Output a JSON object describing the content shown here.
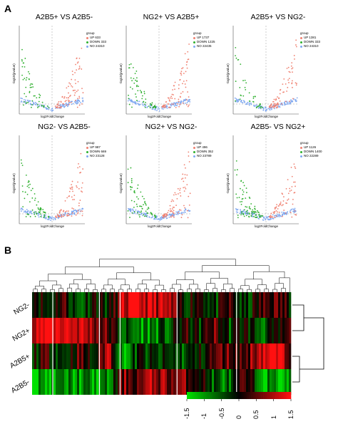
{
  "panels": {
    "a": "A",
    "b": "B"
  },
  "volcano": {
    "legend_title": "group",
    "xlabel": "log2FoldChange",
    "ylabel": "-log10(pvalue)",
    "colors": {
      "up": "#f08070",
      "down": "#2fb02f",
      "no": "#7fa8f0"
    },
    "plots": [
      {
        "title": "A2B5+ VS A2B5-",
        "up_label": "UP 633",
        "down_label": "DOWN 333",
        "no_label": "NO 24310",
        "up": 633,
        "down": 333,
        "no": 24310
      },
      {
        "title": "NG2+ VS A2B5+",
        "up_label": "UP 1737",
        "down_label": "DOWN 1225",
        "no_label": "NO 22435",
        "up": 1737,
        "down": 1225,
        "no": 22435
      },
      {
        "title": "A2B5+ VS NG2-",
        "up_label": "UP 1381",
        "down_label": "DOWN 333",
        "no_label": "NO 24310",
        "up": 1381,
        "down": 333,
        "no": 24310
      },
      {
        "title": "NG2- VS A2B5-",
        "up_label": "UP 987",
        "down_label": "DOWN 669",
        "no_label": "NO 23128",
        "up": 987,
        "down": 669,
        "no": 23128
      },
      {
        "title": "NG2+ VS NG2-",
        "up_label": "UP 496",
        "down_label": "DOWN 352",
        "no_label": "NO 23789",
        "up": 496,
        "down": 352,
        "no": 23789
      },
      {
        "title": "A2B5- VS NG2+",
        "up_label": "UP 1126",
        "down_label": "DOWN 1400",
        "no_label": "NO 22289",
        "up": 1126,
        "down": 1400,
        "no": 22289
      }
    ]
  },
  "heatmap": {
    "rows": [
      "NG2-",
      "NG2+",
      "A2B5+",
      "A2B5-"
    ],
    "colorbar_ticks": [
      "-1.5",
      "-1",
      "-0.5",
      "0",
      "0.5",
      "1",
      "1.5"
    ],
    "colorbar_range": [
      -1.5,
      1.5
    ],
    "colors": {
      "low": "#00e000",
      "mid": "#000000",
      "high": "#ff1010"
    }
  },
  "chart_data": [
    {
      "type": "scatter",
      "title": "A2B5+ VS A2B5-",
      "xlabel": "log2FoldChange",
      "ylabel": "-log10(pvalue)",
      "series": [
        {
          "name": "UP",
          "count": 633
        },
        {
          "name": "DOWN",
          "count": 333
        },
        {
          "name": "NO",
          "count": 24310
        }
      ]
    },
    {
      "type": "scatter",
      "title": "NG2+ VS A2B5+",
      "xlabel": "log2FoldChange",
      "ylabel": "-log10(pvalue)",
      "series": [
        {
          "name": "UP",
          "count": 1737
        },
        {
          "name": "DOWN",
          "count": 1225
        },
        {
          "name": "NO",
          "count": 22435
        }
      ]
    },
    {
      "type": "scatter",
      "title": "A2B5+ VS NG2-",
      "xlabel": "log2FoldChange",
      "ylabel": "-log10(pvalue)",
      "series": [
        {
          "name": "UP",
          "count": 1381
        },
        {
          "name": "DOWN",
          "count": 333
        },
        {
          "name": "NO",
          "count": 24310
        }
      ]
    },
    {
      "type": "scatter",
      "title": "NG2- VS A2B5-",
      "xlabel": "log2FoldChange",
      "ylabel": "-log10(pvalue)",
      "series": [
        {
          "name": "UP",
          "count": 987
        },
        {
          "name": "DOWN",
          "count": 669
        },
        {
          "name": "NO",
          "count": 23128
        }
      ]
    },
    {
      "type": "scatter",
      "title": "NG2+ VS NG2-",
      "xlabel": "log2FoldChange",
      "ylabel": "-log10(pvalue)",
      "series": [
        {
          "name": "UP",
          "count": 496
        },
        {
          "name": "DOWN",
          "count": 352
        },
        {
          "name": "NO",
          "count": 23789
        }
      ]
    },
    {
      "type": "scatter",
      "title": "A2B5- VS NG2+",
      "xlabel": "log2FoldChange",
      "ylabel": "-log10(pvalue)",
      "series": [
        {
          "name": "UP",
          "count": 1126
        },
        {
          "name": "DOWN",
          "count": 1400
        },
        {
          "name": "NO",
          "count": 22289
        }
      ]
    },
    {
      "type": "heatmap",
      "rows": [
        "NG2-",
        "NG2+",
        "A2B5+",
        "A2B5-"
      ],
      "color_range": [
        -1.5,
        1.5
      ],
      "colorbar_ticks": [
        "-1.5",
        "-1",
        "-0.5",
        "0",
        "0.5",
        "1",
        "1.5"
      ]
    }
  ]
}
